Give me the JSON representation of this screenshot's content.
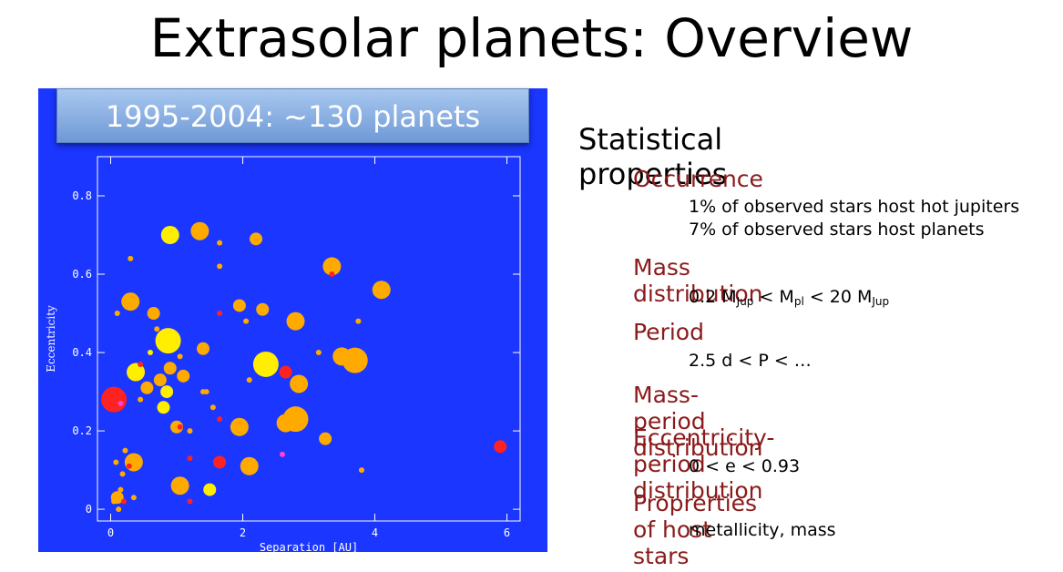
{
  "title": "Extrasolar planets: Overview",
  "plot_banner": "1995-2004: ~130 planets",
  "stats": {
    "heading": "Statistical properties",
    "sections": [
      {
        "title": "Occurrence",
        "details": [
          "1% of observed stars host  hot jupiters",
          "7% of observed stars host planets"
        ]
      },
      {
        "title": "Mass distribution"
      },
      {
        "title": "Period",
        "details": [
          "2.5 d < P < …"
        ]
      },
      {
        "title": "Mass-period distribution"
      },
      {
        "title": "Eccentricity-period distribution",
        "details": [
          "0 < e < 0.93"
        ]
      },
      {
        "title": "Proprerties of host stars",
        "details": [
          "metallicity, mass"
        ]
      }
    ],
    "mass_formula": {
      "low": "0.2 M",
      "low_sub": "Jup",
      "mid": " < M",
      "mid_sub": "pl",
      "high": " < 20 M",
      "high_sub": "Jup"
    }
  },
  "chart_data": {
    "type": "scatter",
    "xlabel": "Separation [AU]",
    "ylabel": "Eccentricity",
    "xlim": [
      -0.2,
      6.2
    ],
    "ylim": [
      -0.03,
      0.9
    ],
    "xticks": [
      0,
      2,
      4,
      6
    ],
    "yticks": [
      0,
      0.2,
      0.4,
      0.6,
      0.8
    ],
    "colors": {
      "panel": "#1a36ff",
      "orange": "#ffaa00",
      "yellow": "#ffee00",
      "red": "#ff2222",
      "magenta": "#ff44cc"
    },
    "points": [
      {
        "x": 0.05,
        "e": 0.28,
        "c": "red",
        "s": 3
      },
      {
        "x": 0.15,
        "e": 0.27,
        "c": "magenta",
        "s": 0
      },
      {
        "x": 0.38,
        "e": 0.35,
        "c": "yellow",
        "s": 2
      },
      {
        "x": 0.3,
        "e": 0.53,
        "c": "orange",
        "s": 2
      },
      {
        "x": 0.87,
        "e": 0.43,
        "c": "yellow",
        "s": 3
      },
      {
        "x": 0.9,
        "e": 0.7,
        "c": "yellow",
        "s": 2
      },
      {
        "x": 1.35,
        "e": 0.71,
        "c": "orange",
        "s": 2
      },
      {
        "x": 2.2,
        "e": 0.69,
        "c": "orange",
        "s": 1
      },
      {
        "x": 3.35,
        "e": 0.62,
        "c": "orange",
        "s": 2
      },
      {
        "x": 4.1,
        "e": 0.56,
        "c": "orange",
        "s": 2
      },
      {
        "x": 3.7,
        "e": 0.38,
        "c": "orange",
        "s": 3
      },
      {
        "x": 3.5,
        "e": 0.39,
        "c": "orange",
        "s": 2
      },
      {
        "x": 2.8,
        "e": 0.23,
        "c": "orange",
        "s": 3
      },
      {
        "x": 2.65,
        "e": 0.22,
        "c": "orange",
        "s": 2
      },
      {
        "x": 2.35,
        "e": 0.37,
        "c": "yellow",
        "s": 3
      },
      {
        "x": 2.8,
        "e": 0.48,
        "c": "orange",
        "s": 2
      },
      {
        "x": 2.85,
        "e": 0.32,
        "c": "orange",
        "s": 2
      },
      {
        "x": 2.3,
        "e": 0.51,
        "c": "orange",
        "s": 1
      },
      {
        "x": 1.95,
        "e": 0.52,
        "c": "orange",
        "s": 1
      },
      {
        "x": 1.95,
        "e": 0.21,
        "c": "orange",
        "s": 2
      },
      {
        "x": 2.1,
        "e": 0.11,
        "c": "orange",
        "s": 2
      },
      {
        "x": 1.05,
        "e": 0.06,
        "c": "orange",
        "s": 2
      },
      {
        "x": 0.35,
        "e": 0.12,
        "c": "orange",
        "s": 2
      },
      {
        "x": 3.25,
        "e": 0.18,
        "c": "orange",
        "s": 1
      },
      {
        "x": 3.35,
        "e": 0.6,
        "c": "red",
        "s": 0
      },
      {
        "x": 5.9,
        "e": 0.16,
        "c": "red",
        "s": 1
      },
      {
        "x": 2.65,
        "e": 0.35,
        "c": "red",
        "s": 1
      },
      {
        "x": 1.65,
        "e": 0.12,
        "c": "red",
        "s": 1
      },
      {
        "x": 1.4,
        "e": 0.41,
        "c": "orange",
        "s": 1
      },
      {
        "x": 0.9,
        "e": 0.36,
        "c": "orange",
        "s": 1
      },
      {
        "x": 0.75,
        "e": 0.33,
        "c": "orange",
        "s": 1
      },
      {
        "x": 0.55,
        "e": 0.31,
        "c": "orange",
        "s": 1
      },
      {
        "x": 1.1,
        "e": 0.34,
        "c": "orange",
        "s": 1
      },
      {
        "x": 0.65,
        "e": 0.5,
        "c": "orange",
        "s": 1
      },
      {
        "x": 1.0,
        "e": 0.21,
        "c": "orange",
        "s": 1
      },
      {
        "x": 2.05,
        "e": 0.48,
        "c": "orange",
        "s": 0
      },
      {
        "x": 1.65,
        "e": 0.68,
        "c": "orange",
        "s": 0
      },
      {
        "x": 1.65,
        "e": 0.62,
        "c": "orange",
        "s": 0
      },
      {
        "x": 0.3,
        "e": 0.64,
        "c": "orange",
        "s": 0
      },
      {
        "x": 0.1,
        "e": 0.5,
        "c": "orange",
        "s": 0
      },
      {
        "x": 0.8,
        "e": 0.26,
        "c": "yellow",
        "s": 1
      },
      {
        "x": 1.4,
        "e": 0.3,
        "c": "orange",
        "s": 0
      },
      {
        "x": 1.2,
        "e": 0.2,
        "c": "orange",
        "s": 0
      },
      {
        "x": 1.2,
        "e": 0.13,
        "c": "red",
        "s": 0
      },
      {
        "x": 0.85,
        "e": 0.3,
        "c": "yellow",
        "s": 1
      },
      {
        "x": 0.6,
        "e": 0.4,
        "c": "yellow",
        "s": 0
      },
      {
        "x": 1.05,
        "e": 0.39,
        "c": "orange",
        "s": 0
      },
      {
        "x": 0.18,
        "e": 0.09,
        "c": "orange",
        "s": 0
      },
      {
        "x": 0.22,
        "e": 0.15,
        "c": "orange",
        "s": 0
      },
      {
        "x": 0.1,
        "e": 0.03,
        "c": "orange",
        "s": 1
      },
      {
        "x": 0.05,
        "e": 0.02,
        "c": "orange",
        "s": 0
      },
      {
        "x": 0.15,
        "e": 0.05,
        "c": "orange",
        "s": 0
      },
      {
        "x": 0.12,
        "e": 0.0,
        "c": "orange",
        "s": 0
      },
      {
        "x": 0.2,
        "e": 0.02,
        "c": "red",
        "s": 0
      },
      {
        "x": 0.35,
        "e": 0.03,
        "c": "orange",
        "s": 0
      },
      {
        "x": 0.08,
        "e": 0.12,
        "c": "orange",
        "s": 0
      },
      {
        "x": 0.28,
        "e": 0.11,
        "c": "red",
        "s": 0
      },
      {
        "x": 1.5,
        "e": 0.05,
        "c": "yellow",
        "s": 1
      },
      {
        "x": 1.2,
        "e": 0.02,
        "c": "red",
        "s": 0
      },
      {
        "x": 1.65,
        "e": 0.5,
        "c": "red",
        "s": 0
      },
      {
        "x": 2.1,
        "e": 0.33,
        "c": "orange",
        "s": 0
      },
      {
        "x": 2.6,
        "e": 0.14,
        "c": "magenta",
        "s": 0
      },
      {
        "x": 3.75,
        "e": 0.48,
        "c": "orange",
        "s": 0
      },
      {
        "x": 3.8,
        "e": 0.1,
        "c": "orange",
        "s": 0
      },
      {
        "x": 3.15,
        "e": 0.4,
        "c": "orange",
        "s": 0
      },
      {
        "x": 1.05,
        "e": 0.21,
        "c": "red",
        "s": 0
      },
      {
        "x": 1.65,
        "e": 0.23,
        "c": "red",
        "s": 0
      },
      {
        "x": 1.55,
        "e": 0.26,
        "c": "orange",
        "s": 0
      },
      {
        "x": 1.45,
        "e": 0.3,
        "c": "orange",
        "s": 0
      },
      {
        "x": 0.45,
        "e": 0.28,
        "c": "orange",
        "s": 0
      },
      {
        "x": 0.7,
        "e": 0.46,
        "c": "orange",
        "s": 0
      },
      {
        "x": 0.45,
        "e": 0.37,
        "c": "red",
        "s": 0
      }
    ]
  }
}
